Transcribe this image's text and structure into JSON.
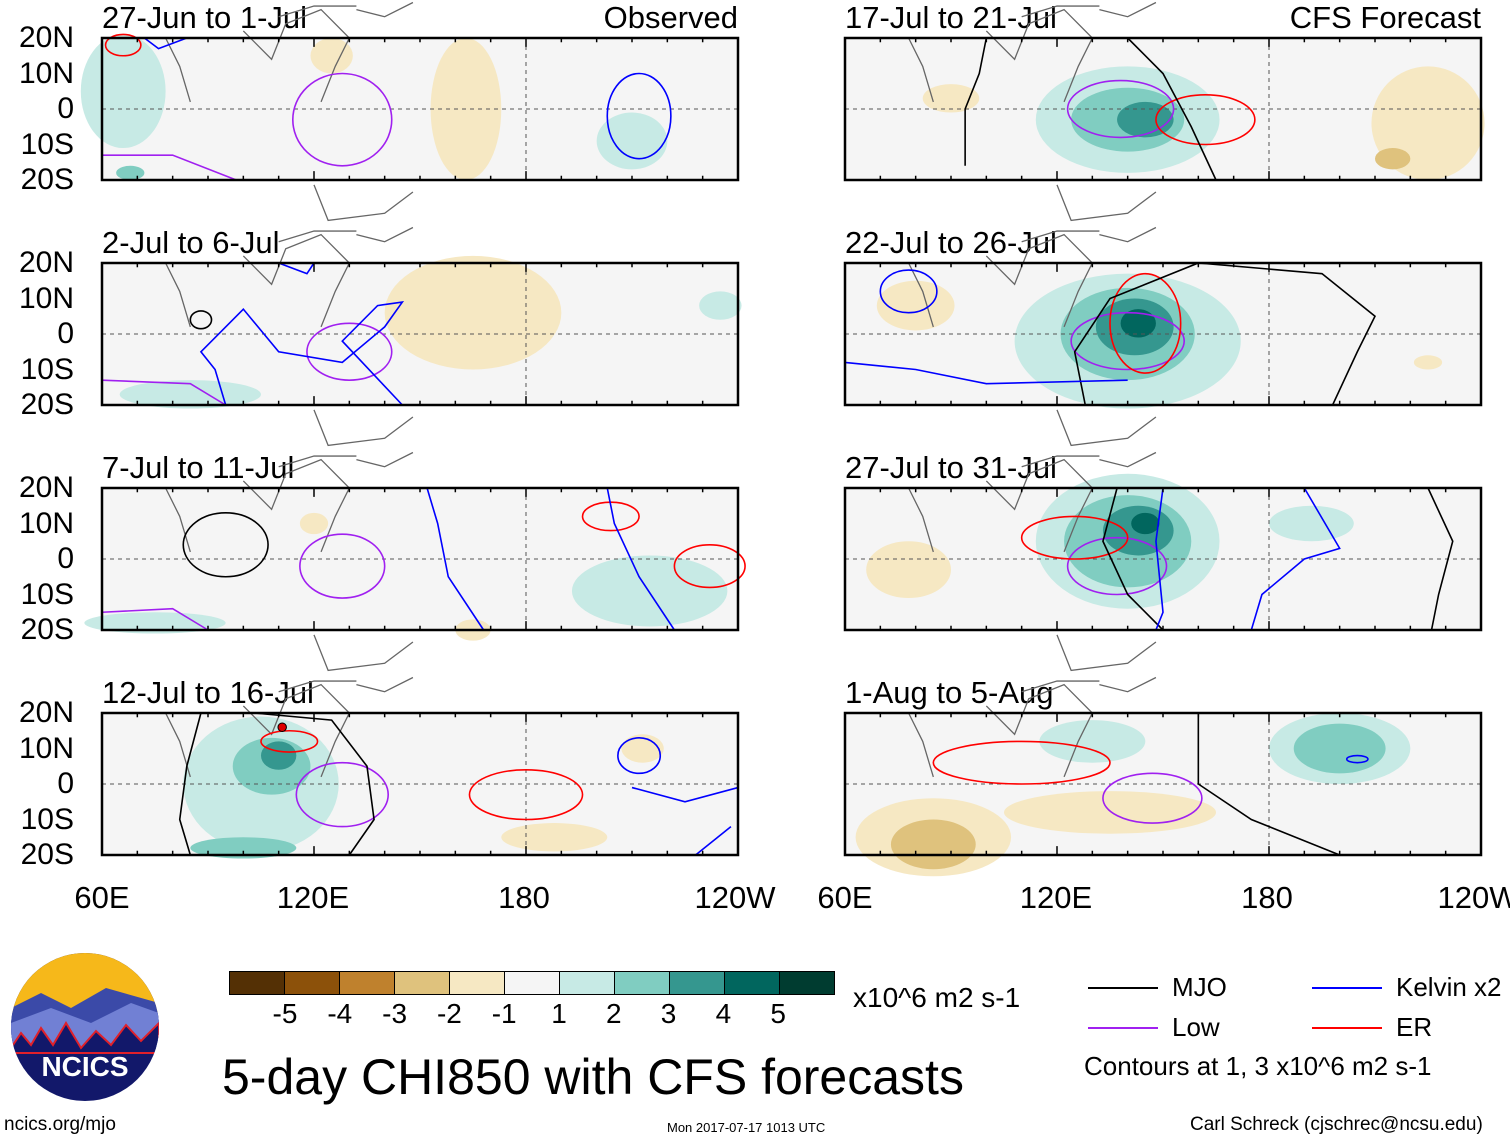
{
  "panels": [
    {
      "title": "27-Jun to 1-Jul",
      "label": "Observed"
    },
    {
      "title": "2-Jul to 6-Jul"
    },
    {
      "title": "7-Jul to 11-Jul"
    },
    {
      "title": "12-Jul to 16-Jul"
    },
    {
      "title": "17-Jul to 21-Jul",
      "label": "CFS Forecast"
    },
    {
      "title": "22-Jul to 26-Jul"
    },
    {
      "title": "27-Jul to 31-Jul"
    },
    {
      "title": "1-Aug to 5-Aug"
    }
  ],
  "lat_ticks": [
    "20N",
    "10N",
    "0",
    "10S",
    "20S"
  ],
  "lon_ticks": [
    "60E",
    "120E",
    "180",
    "120W"
  ],
  "colorbar": {
    "colors": [
      "#543005",
      "#8c510a",
      "#bf812d",
      "#dfc27d",
      "#f6e8c3",
      "#f5f5f5",
      "#c7eae5",
      "#80cdc1",
      "#35978f",
      "#01665e",
      "#003c30"
    ],
    "labels": [
      "-5",
      "-4",
      "-3",
      "-2",
      "-1",
      "1",
      "2",
      "3",
      "4",
      "5"
    ],
    "units": "x10^6 m2 s-1"
  },
  "legend": {
    "items": [
      {
        "label": "MJO",
        "color": "#000000"
      },
      {
        "label": "Kelvin x2",
        "color": "#0000ff"
      },
      {
        "label": "Low",
        "color": "#a020f0"
      },
      {
        "label": "ER",
        "color": "#ff0000"
      }
    ],
    "note": "Contours at 1, 3 x10^6 m2 s-1"
  },
  "title": "5-day CHI850 with CFS forecasts",
  "logo_text": "NCICS",
  "url": "ncics.org/mjo",
  "timestamp": "Mon 2017-07-17 1013 UTC",
  "author": "Carl Schreck (cjschrec@ncsu.edu)",
  "storm_marker": "T"
}
